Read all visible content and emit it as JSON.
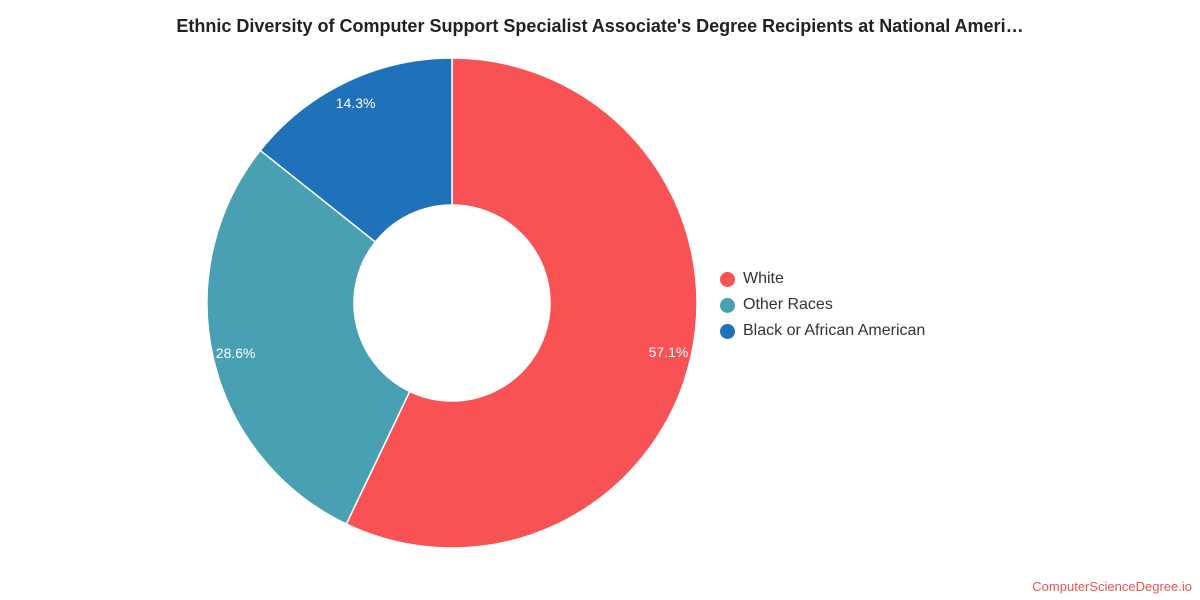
{
  "chart_data": {
    "type": "pie",
    "donut": true,
    "title": "Ethnic Diversity of Computer Support Specialist Associate's Degree Recipients at National Ameri…",
    "slices": [
      {
        "name": "White",
        "value": 57.1,
        "label": "57.1%",
        "color": "#f95254"
      },
      {
        "name": "Other Races",
        "value": 28.6,
        "label": "28.6%",
        "color": "#48a0b2"
      },
      {
        "name": "Black or African American",
        "value": 14.3,
        "label": "14.3%",
        "color": "#1f72ba"
      }
    ],
    "legend_position": "right"
  },
  "watermark": "ComputerScienceDegree.io"
}
